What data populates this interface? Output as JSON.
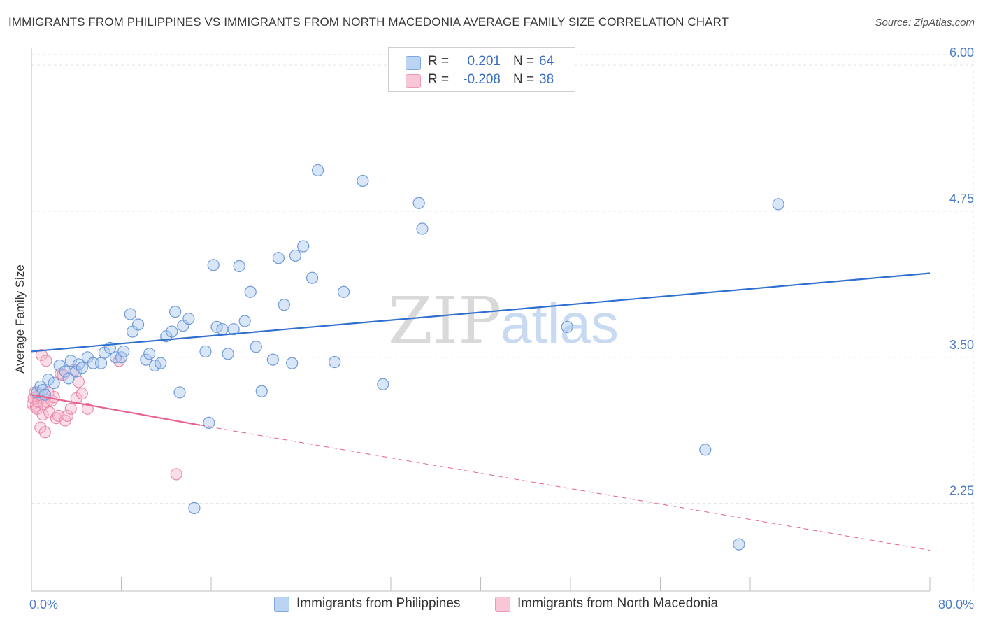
{
  "header": {
    "title": "IMMIGRANTS FROM PHILIPPINES VS IMMIGRANTS FROM NORTH MACEDONIA AVERAGE FAMILY SIZE CORRELATION CHART",
    "source": "Source: ZipAtlas.com"
  },
  "watermark": {
    "zip": "ZIP",
    "atlas": "atlas"
  },
  "legend": {
    "rows": [
      {
        "r_label": "R =",
        "r_value": "0.201",
        "n_label": "N =",
        "n_value": "64"
      },
      {
        "r_label": "R =",
        "r_value": "-0.208",
        "n_label": "N =",
        "n_value": "38"
      }
    ]
  },
  "bottom_legend": {
    "philippines": "Immigrants from Philippines",
    "macedonia": "Immigrants from North Macedonia"
  },
  "colors": {
    "philippines_fill": "#a9c8f0",
    "philippines_stroke": "#6f9ad8",
    "philippines_line": "#2f6fd0",
    "macedonia_fill": "#f7b8cc",
    "macedonia_stroke": "#ea8aab",
    "macedonia_line": "#e8608c",
    "tick_text": "#4a7cc7",
    "grid": "#e3e3e3"
  },
  "chart_data": {
    "type": "scatter",
    "title": "IMMIGRANTS FROM PHILIPPINES VS IMMIGRANTS FROM NORTH MACEDONIA AVERAGE FAMILY SIZE CORRELATION CHART",
    "xlabel": "",
    "ylabel": "Average Family Size",
    "xlim": [
      0,
      80
    ],
    "ylim": [
      1.5,
      6.15
    ],
    "x_tick_labels": [
      "0.0%",
      "80.0%"
    ],
    "y_ticks": [
      2.25,
      3.5,
      4.75,
      6.0
    ],
    "y_tick_labels": [
      "2.25",
      "3.50",
      "4.75",
      "6.00"
    ],
    "grid": true,
    "series": [
      {
        "name": "Immigrants from Philippines",
        "x": [
          0.5,
          0.8,
          1.0,
          1.2,
          1.5,
          2.0,
          2.5,
          3.0,
          3.3,
          3.5,
          4.0,
          4.2,
          4.5,
          5.0,
          5.5,
          6.2,
          6.5,
          7.0,
          7.5,
          8.0,
          8.2,
          8.8,
          9.0,
          9.5,
          10.2,
          10.5,
          11.0,
          11.5,
          12.0,
          12.5,
          12.8,
          13.2,
          13.5,
          14.0,
          14.5,
          15.5,
          15.8,
          16.2,
          16.5,
          17.0,
          17.5,
          18.0,
          18.5,
          19.0,
          19.5,
          20.0,
          20.5,
          21.5,
          22.0,
          22.5,
          23.2,
          23.5,
          24.2,
          25.0,
          25.5,
          27.0,
          27.8,
          29.5,
          31.3,
          34.5,
          34.8,
          47.7,
          60.0,
          63.0,
          66.5
        ],
        "y": [
          3.2,
          3.25,
          3.22,
          3.18,
          3.31,
          3.28,
          3.43,
          3.38,
          3.32,
          3.47,
          3.38,
          3.44,
          3.41,
          3.5,
          3.45,
          3.45,
          3.54,
          3.58,
          3.5,
          3.5,
          3.55,
          3.87,
          3.72,
          3.78,
          3.48,
          3.53,
          3.43,
          3.45,
          3.68,
          3.72,
          3.89,
          3.2,
          3.77,
          3.83,
          2.21,
          3.55,
          2.94,
          4.29,
          3.76,
          3.74,
          3.53,
          3.74,
          4.28,
          3.81,
          4.06,
          3.59,
          3.21,
          3.48,
          4.35,
          3.95,
          3.45,
          4.37,
          4.45,
          4.18,
          5.1,
          3.46,
          4.06,
          5.01,
          3.27,
          4.82,
          4.6,
          3.76,
          2.71,
          1.9,
          4.81
        ]
      },
      {
        "name": "Immigrants from North Macedonia",
        "x": [
          0.1,
          0.2,
          0.3,
          0.4,
          0.5,
          0.6,
          0.7,
          0.8,
          0.9,
          1.0,
          1.1,
          1.2,
          1.3,
          1.4,
          1.5,
          1.6,
          1.8,
          2.0,
          2.2,
          2.4,
          2.6,
          2.8,
          3.0,
          3.2,
          3.5,
          3.8,
          4.0,
          4.2,
          4.5,
          5.0,
          7.8,
          12.9
        ],
        "y": [
          3.1,
          3.15,
          3.2,
          3.08,
          3.06,
          3.12,
          3.18,
          2.9,
          3.52,
          3.01,
          3.1,
          2.86,
          3.47,
          3.12,
          3.2,
          3.03,
          3.13,
          3.16,
          2.98,
          3.0,
          3.36,
          3.35,
          2.96,
          3.0,
          3.06,
          3.39,
          3.15,
          3.29,
          3.19,
          3.06,
          3.47,
          2.5
        ]
      }
    ],
    "trendlines": [
      {
        "series": "Immigrants from Philippines",
        "x": [
          0,
          80
        ],
        "y": [
          3.55,
          4.22
        ],
        "style": "solid"
      },
      {
        "series": "Immigrants from North Macedonia",
        "x": [
          0,
          15
        ],
        "y": [
          3.18,
          2.92
        ],
        "style": "solid"
      },
      {
        "series": "Immigrants from North Macedonia",
        "x": [
          15,
          80
        ],
        "y": [
          2.92,
          1.85
        ],
        "style": "dashed"
      }
    ]
  }
}
